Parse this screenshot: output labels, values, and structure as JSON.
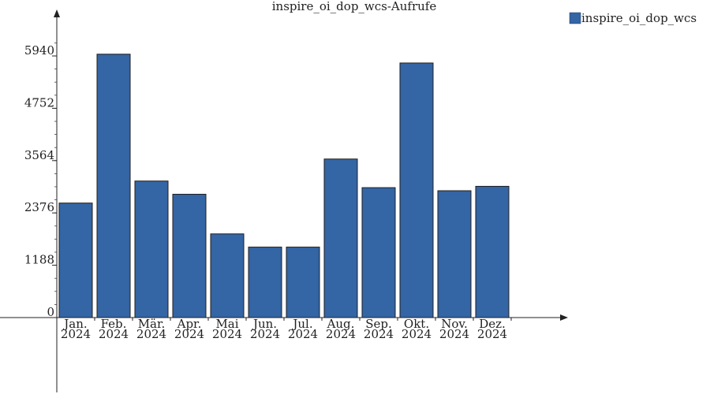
{
  "chart_data": {
    "type": "bar",
    "title": "inspire_oi_dop_wcs-Aufrufe",
    "xlabel": "",
    "ylabel": "",
    "categories": [
      [
        "Jan.",
        "2024"
      ],
      [
        "Feb.",
        "2024"
      ],
      [
        "Mär.",
        "2024"
      ],
      [
        "Apr.",
        "2024"
      ],
      [
        "Mai",
        "2024"
      ],
      [
        "Jun.",
        "2024"
      ],
      [
        "Jul.",
        "2024"
      ],
      [
        "Aug.",
        "2024"
      ],
      [
        "Sep.",
        "2024"
      ],
      [
        "Okt.",
        "2024"
      ],
      [
        "Nov.",
        "2024"
      ],
      [
        "Dez.",
        "2024"
      ]
    ],
    "series": [
      {
        "name": "inspire_oi_dop_wcs",
        "color": "#3465a4",
        "values": [
          2600,
          5980,
          3100,
          2800,
          1900,
          1600,
          1600,
          3600,
          2950,
          5780,
          2880,
          2980
        ]
      }
    ],
    "yticks": [
      0,
      1188,
      2376,
      3564,
      4752,
      5940
    ],
    "ylim": [
      0,
      6280
    ],
    "grid": false,
    "legend_position": "top-right"
  }
}
